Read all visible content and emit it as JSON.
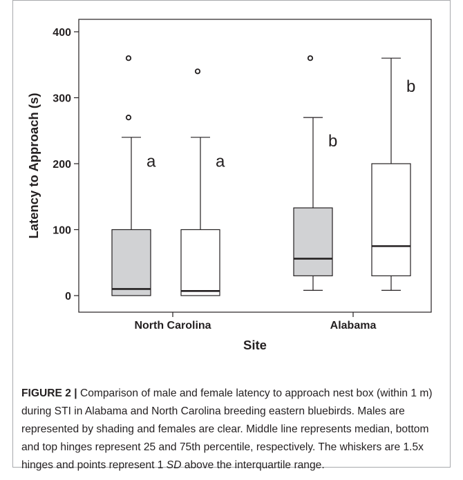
{
  "chart_data": {
    "type": "box",
    "xlabel": "Site",
    "ylabel": "Latency to Approach (s)",
    "ylim": [
      -15,
      420
    ],
    "yticks": [
      0,
      100,
      200,
      300,
      400
    ],
    "categories": [
      "North Carolina",
      "Alabama"
    ],
    "legend": "none",
    "grid": false,
    "series": [
      {
        "fill": "#d1d2d4"
      },
      {
        "fill": "#ffffff"
      }
    ],
    "boxes": [
      {
        "site": "North Carolina",
        "series_index": 0,
        "whisker_low": 0,
        "q1": 0,
        "median": 10,
        "q3": 100,
        "whisker_high": 240,
        "outliers": [
          270,
          360
        ],
        "letter": "a"
      },
      {
        "site": "North Carolina",
        "series_index": 1,
        "whisker_low": 0,
        "q1": 0,
        "median": 7,
        "q3": 100,
        "whisker_high": 240,
        "outliers": [
          340
        ],
        "letter": "a"
      },
      {
        "site": "Alabama",
        "series_index": 0,
        "whisker_low": 8,
        "q1": 30,
        "median": 56,
        "q3": 133,
        "whisker_high": 270,
        "outliers": [
          360
        ],
        "letter": "b"
      },
      {
        "site": "Alabama",
        "series_index": 1,
        "whisker_low": 8,
        "q1": 30,
        "median": 75,
        "q3": 200,
        "whisker_high": 360,
        "outliers": [],
        "letter": "b"
      }
    ]
  },
  "caption": {
    "label": "FIGURE 2 |",
    "text_before_sd": " Comparison of male and female latency to approach nest box (within 1 m) during STI in Alabama and North Carolina breeding eastern bluebirds. Males are represented by shading and females are clear. Middle line represents median, bottom and top hinges represent 25 and 75th percentile, respectively. The whiskers are 1.5x hinges and points represent 1 ",
    "sd": "SD",
    "text_after_sd": " above the interquartile range."
  }
}
